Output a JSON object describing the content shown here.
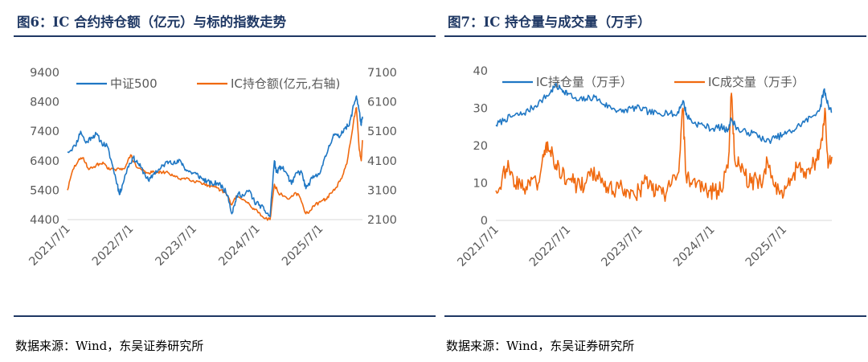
{
  "panels": {
    "left": {
      "title": "图6：IC 合约持仓额（亿元）与标的指数走势",
      "source": "数据来源：Wind，东吴证券研究所"
    },
    "right": {
      "title": "图7：IC 持仓量与成交量（万手）",
      "source": "数据来源：Wind，东吴证券研究所"
    }
  },
  "colors": {
    "blue": "#1f77c4",
    "orange": "#f0690f",
    "axis": "#d9d9d9",
    "title": "#1f3864"
  },
  "chart_data": [
    {
      "type": "line",
      "x_tick_labels": [
        "2021/7/1",
        "2022/7/1",
        "2023/7/1",
        "2024/7/1",
        "2025/7/1"
      ],
      "y_left_ticks": [
        "9400",
        "8400",
        "7400",
        "6400",
        "5400",
        "4400"
      ],
      "y_right_ticks": [
        "7100",
        "6100",
        "5100",
        "4100",
        "3100",
        "2100"
      ],
      "ylim_left": [
        4400,
        9400
      ],
      "ylim_right": [
        2100,
        7100
      ],
      "x_range": [
        "2021-07-01",
        "2026-03-01"
      ],
      "legend_position": "top",
      "grid": false,
      "series": [
        {
          "name": "中证500",
          "axis": "left",
          "color": "#1f77c4",
          "points": [
            [
              "2021-07-01",
              6700
            ],
            [
              "2021-08-15",
              6900
            ],
            [
              "2021-09-15",
              7400
            ],
            [
              "2021-10-15",
              7000
            ],
            [
              "2021-11-15",
              7200
            ],
            [
              "2021-12-15",
              7300
            ],
            [
              "2022-01-15",
              7000
            ],
            [
              "2022-02-15",
              6900
            ],
            [
              "2022-03-15",
              6300
            ],
            [
              "2022-04-15",
              5600
            ],
            [
              "2022-04-27",
              5250
            ],
            [
              "2022-05-15",
              5600
            ],
            [
              "2022-06-15",
              6200
            ],
            [
              "2022-07-15",
              6500
            ],
            [
              "2022-08-15",
              6300
            ],
            [
              "2022-09-15",
              6000
            ],
            [
              "2022-10-15",
              5700
            ],
            [
              "2022-11-15",
              6000
            ],
            [
              "2022-12-15",
              6100
            ],
            [
              "2023-01-15",
              6300
            ],
            [
              "2023-02-15",
              6400
            ],
            [
              "2023-03-15",
              6300
            ],
            [
              "2023-04-15",
              6400
            ],
            [
              "2023-05-15",
              6100
            ],
            [
              "2023-06-15",
              6000
            ],
            [
              "2023-07-15",
              5950
            ],
            [
              "2023-08-15",
              5800
            ],
            [
              "2023-09-15",
              5700
            ],
            [
              "2023-10-15",
              5600
            ],
            [
              "2023-11-15",
              5650
            ],
            [
              "2023-12-15",
              5500
            ],
            [
              "2024-01-15",
              5200
            ],
            [
              "2024-02-05",
              4600
            ],
            [
              "2024-02-25",
              5000
            ],
            [
              "2024-03-15",
              5300
            ],
            [
              "2024-04-15",
              5200
            ],
            [
              "2024-05-15",
              5400
            ],
            [
              "2024-06-15",
              5000
            ],
            [
              "2024-07-15",
              4900
            ],
            [
              "2024-08-15",
              4700
            ],
            [
              "2024-09-13",
              4500
            ],
            [
              "2024-10-08",
              6400
            ],
            [
              "2024-10-20",
              6000
            ],
            [
              "2024-11-15",
              6200
            ],
            [
              "2024-12-15",
              6000
            ],
            [
              "2025-01-15",
              5600
            ],
            [
              "2025-02-15",
              6000
            ],
            [
              "2025-03-15",
              6000
            ],
            [
              "2025-04-08",
              5450
            ],
            [
              "2025-05-15",
              5800
            ],
            [
              "2025-06-15",
              5900
            ],
            [
              "2025-07-15",
              6250
            ],
            [
              "2025-08-15",
              6800
            ],
            [
              "2025-09-15",
              7300
            ],
            [
              "2025-10-15",
              7200
            ],
            [
              "2025-11-15",
              7500
            ],
            [
              "2025-12-15",
              7600
            ],
            [
              "2026-01-10",
              8300
            ],
            [
              "2026-01-25",
              8600
            ],
            [
              "2026-02-10",
              8100
            ],
            [
              "2026-02-22",
              7600
            ],
            [
              "2026-03-01",
              7900
            ]
          ]
        },
        {
          "name": "IC持仓额(亿元,右轴)",
          "axis": "right",
          "color": "#f0690f",
          "points": [
            [
              "2021-07-01",
              3100
            ],
            [
              "2021-08-01",
              3800
            ],
            [
              "2021-09-01",
              4100
            ],
            [
              "2021-10-01",
              4200
            ],
            [
              "2021-11-01",
              3800
            ],
            [
              "2021-12-01",
              3900
            ],
            [
              "2022-01-01",
              4000
            ],
            [
              "2022-02-01",
              4000
            ],
            [
              "2022-03-01",
              3800
            ],
            [
              "2022-04-01",
              3800
            ],
            [
              "2022-05-01",
              3800
            ],
            [
              "2022-06-01",
              3900
            ],
            [
              "2022-07-01",
              4300
            ],
            [
              "2022-08-01",
              3900
            ],
            [
              "2022-09-01",
              3800
            ],
            [
              "2022-10-01",
              3700
            ],
            [
              "2022-11-01",
              3700
            ],
            [
              "2022-12-01",
              3700
            ],
            [
              "2023-01-01",
              3700
            ],
            [
              "2023-02-01",
              3700
            ],
            [
              "2023-03-01",
              3600
            ],
            [
              "2023-04-01",
              3500
            ],
            [
              "2023-05-01",
              3500
            ],
            [
              "2023-06-01",
              3500
            ],
            [
              "2023-07-01",
              3400
            ],
            [
              "2023-08-01",
              3400
            ],
            [
              "2023-09-01",
              3300
            ],
            [
              "2023-10-01",
              3200
            ],
            [
              "2023-11-01",
              3200
            ],
            [
              "2023-12-01",
              3100
            ],
            [
              "2024-01-01",
              3000
            ],
            [
              "2024-02-05",
              2600
            ],
            [
              "2024-03-01",
              2900
            ],
            [
              "2024-04-01",
              2800
            ],
            [
              "2024-05-01",
              2700
            ],
            [
              "2024-06-01",
              2500
            ],
            [
              "2024-07-01",
              2400
            ],
            [
              "2024-08-01",
              2200
            ],
            [
              "2024-09-13",
              2100
            ],
            [
              "2024-10-08",
              3300
            ],
            [
              "2024-11-01",
              3000
            ],
            [
              "2024-12-01",
              2900
            ],
            [
              "2025-01-01",
              2800
            ],
            [
              "2025-02-01",
              3000
            ],
            [
              "2025-03-01",
              2900
            ],
            [
              "2025-04-08",
              2300
            ],
            [
              "2025-05-01",
              2400
            ],
            [
              "2025-06-01",
              2600
            ],
            [
              "2025-07-01",
              2700
            ],
            [
              "2025-08-01",
              2800
            ],
            [
              "2025-09-01",
              3000
            ],
            [
              "2025-10-01",
              3200
            ],
            [
              "2025-11-01",
              3500
            ],
            [
              "2025-12-01",
              4000
            ],
            [
              "2026-01-10",
              5500
            ],
            [
              "2026-01-25",
              5900
            ],
            [
              "2026-02-10",
              4500
            ],
            [
              "2026-02-22",
              4100
            ],
            [
              "2026-03-01",
              4800
            ]
          ]
        }
      ]
    },
    {
      "type": "line",
      "x_tick_labels": [
        "2021/7/1",
        "2022/7/1",
        "2023/7/1",
        "2024/7/1",
        "2025/7/1"
      ],
      "y_ticks": [
        "40",
        "30",
        "20",
        "10",
        "0"
      ],
      "ylim": [
        0,
        40
      ],
      "x_range": [
        "2021-07-01",
        "2026-03-01"
      ],
      "legend_position": "top",
      "grid": false,
      "series": [
        {
          "name": "IC持仓量（万手）",
          "color": "#1f77c4",
          "points": [
            [
              "2021-07-01",
              25.5
            ],
            [
              "2021-08-15",
              27
            ],
            [
              "2021-10-01",
              28
            ],
            [
              "2021-11-15",
              28.5
            ],
            [
              "2022-01-01",
              30
            ],
            [
              "2022-02-15",
              32
            ],
            [
              "2022-04-01",
              34
            ],
            [
              "2022-04-27",
              36
            ],
            [
              "2022-06-01",
              35
            ],
            [
              "2022-07-01",
              34
            ],
            [
              "2022-08-15",
              32
            ],
            [
              "2022-10-01",
              32.5
            ],
            [
              "2022-11-15",
              33
            ],
            [
              "2023-01-01",
              31
            ],
            [
              "2023-02-15",
              30
            ],
            [
              "2023-04-01",
              29
            ],
            [
              "2023-05-15",
              30
            ],
            [
              "2023-07-01",
              30
            ],
            [
              "2023-08-15",
              29
            ],
            [
              "2023-10-01",
              28.5
            ],
            [
              "2023-11-15",
              29
            ],
            [
              "2024-01-01",
              28
            ],
            [
              "2024-02-05",
              32
            ],
            [
              "2024-02-25",
              28
            ],
            [
              "2024-04-01",
              26
            ],
            [
              "2024-05-15",
              25.5
            ],
            [
              "2024-07-01",
              24.5
            ],
            [
              "2024-08-15",
              25
            ],
            [
              "2024-09-15",
              24
            ],
            [
              "2024-10-08",
              27
            ],
            [
              "2024-11-15",
              24
            ],
            [
              "2025-01-01",
              23.5
            ],
            [
              "2025-02-15",
              23
            ],
            [
              "2025-04-01",
              21
            ],
            [
              "2025-05-15",
              22
            ],
            [
              "2025-07-01",
              23
            ],
            [
              "2025-08-15",
              24
            ],
            [
              "2025-10-01",
              26
            ],
            [
              "2025-11-15",
              27.5
            ],
            [
              "2026-01-01",
              30
            ],
            [
              "2026-01-20",
              35
            ],
            [
              "2026-02-10",
              31
            ],
            [
              "2026-03-01",
              29
            ]
          ]
        },
        {
          "name": "IC成交量（万手）",
          "color": "#f0690f",
          "points": [
            [
              "2021-07-01",
              8
            ],
            [
              "2021-08-01",
              11
            ],
            [
              "2021-09-01",
              16
            ],
            [
              "2021-10-01",
              9
            ],
            [
              "2021-11-01",
              10
            ],
            [
              "2021-12-01",
              9
            ],
            [
              "2022-01-01",
              11
            ],
            [
              "2022-02-01",
              10
            ],
            [
              "2022-03-01",
              17
            ],
            [
              "2022-03-20",
              21
            ],
            [
              "2022-04-15",
              18
            ],
            [
              "2022-05-01",
              15
            ],
            [
              "2022-06-01",
              12
            ],
            [
              "2022-07-01",
              11
            ],
            [
              "2022-08-01",
              10
            ],
            [
              "2022-09-01",
              9
            ],
            [
              "2022-10-01",
              10
            ],
            [
              "2022-11-01",
              13
            ],
            [
              "2022-12-01",
              11
            ],
            [
              "2023-01-01",
              9
            ],
            [
              "2023-02-01",
              10
            ],
            [
              "2023-03-01",
              8
            ],
            [
              "2023-04-01",
              9
            ],
            [
              "2023-05-01",
              8
            ],
            [
              "2023-06-01",
              7
            ],
            [
              "2023-07-01",
              8
            ],
            [
              "2023-08-01",
              11
            ],
            [
              "2023-09-01",
              8
            ],
            [
              "2023-10-01",
              8
            ],
            [
              "2023-11-01",
              7
            ],
            [
              "2023-12-01",
              9
            ],
            [
              "2024-01-15",
              13
            ],
            [
              "2024-02-05",
              30
            ],
            [
              "2024-02-20",
              12
            ],
            [
              "2024-03-15",
              10
            ],
            [
              "2024-04-15",
              10
            ],
            [
              "2024-05-15",
              9
            ],
            [
              "2024-06-15",
              8
            ],
            [
              "2024-07-15",
              8
            ],
            [
              "2024-08-15",
              8
            ],
            [
              "2024-09-20",
              14
            ],
            [
              "2024-10-08",
              34
            ],
            [
              "2024-10-25",
              16
            ],
            [
              "2024-11-15",
              15
            ],
            [
              "2024-12-15",
              12
            ],
            [
              "2025-01-15",
              10
            ],
            [
              "2025-02-15",
              11
            ],
            [
              "2025-03-15",
              10
            ],
            [
              "2025-04-08",
              16
            ],
            [
              "2025-05-15",
              9
            ],
            [
              "2025-06-15",
              8
            ],
            [
              "2025-07-15",
              9
            ],
            [
              "2025-08-15",
              12
            ],
            [
              "2025-09-15",
              15
            ],
            [
              "2025-10-15",
              13
            ],
            [
              "2025-11-15",
              14
            ],
            [
              "2025-12-15",
              16
            ],
            [
              "2026-01-10",
              22
            ],
            [
              "2026-01-25",
              30
            ],
            [
              "2026-02-10",
              14
            ],
            [
              "2026-03-01",
              17
            ]
          ]
        }
      ]
    }
  ]
}
